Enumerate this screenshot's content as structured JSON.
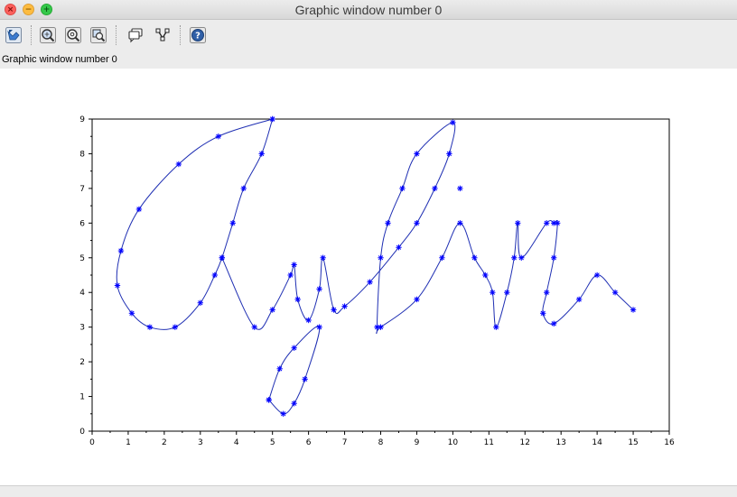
{
  "window": {
    "title": "Graphic window number 0",
    "subtitle": "Graphic window number 0"
  },
  "toolbar": {
    "buttons": [
      {
        "name": "rotate-button",
        "icon": "rotate-icon"
      },
      {
        "name": "zoom-button",
        "icon": "zoom-icon"
      },
      {
        "name": "zoom-origin-button",
        "icon": "zoom-origin-icon"
      },
      {
        "name": "zoom-out-button",
        "icon": "zoom-out-icon"
      },
      {
        "name": "datatip-button",
        "icon": "datatip-icon"
      },
      {
        "name": "edit-curve-button",
        "icon": "edit-curve-icon"
      },
      {
        "name": "help-button",
        "icon": "help-icon"
      }
    ]
  },
  "colors": {
    "curve": "#1f2fb3",
    "marker": "#0000ff"
  },
  "chart_data": {
    "type": "line",
    "title": "",
    "xlabel": "",
    "ylabel": "",
    "xlim": [
      0,
      16
    ],
    "ylim": [
      0,
      9
    ],
    "x_ticks": [
      "0",
      "1",
      "2",
      "3",
      "4",
      "5",
      "6",
      "7",
      "8",
      "9",
      "10",
      "11",
      "12",
      "13",
      "14",
      "15",
      "16"
    ],
    "y_ticks": [
      "0",
      "1",
      "2",
      "3",
      "4",
      "5",
      "6",
      "7",
      "8",
      "9"
    ],
    "grid": false,
    "marker": "*",
    "series": [
      {
        "points": [
          [
            5.0,
            9.0
          ],
          [
            3.5,
            8.5
          ],
          [
            2.4,
            7.7
          ],
          [
            1.3,
            6.4
          ],
          [
            0.8,
            5.2
          ],
          [
            0.7,
            4.2
          ],
          [
            1.1,
            3.4
          ],
          [
            1.6,
            3.0
          ],
          [
            2.3,
            3.0
          ],
          [
            3.0,
            3.7
          ],
          [
            3.4,
            4.5
          ],
          [
            3.6,
            5.0
          ],
          [
            3.9,
            6.0
          ],
          [
            4.2,
            7.0
          ],
          [
            4.7,
            8.0
          ],
          [
            5.0,
            9.0
          ]
        ]
      },
      {
        "points": [
          [
            3.6,
            5.0
          ],
          [
            4.5,
            3.0
          ],
          [
            5.0,
            3.5
          ],
          [
            5.5,
            4.5
          ],
          [
            5.6,
            4.8
          ],
          [
            5.7,
            3.8
          ],
          [
            6.0,
            3.2
          ],
          [
            6.3,
            4.1
          ],
          [
            6.4,
            5.0
          ],
          [
            6.7,
            3.5
          ],
          [
            7.0,
            3.6
          ],
          [
            7.7,
            4.3
          ],
          [
            8.5,
            5.3
          ],
          [
            9.0,
            6.0
          ],
          [
            9.5,
            7.0
          ],
          [
            9.9,
            8.0
          ],
          [
            10.0,
            8.9
          ],
          [
            9.0,
            8.0
          ],
          [
            8.6,
            7.0
          ],
          [
            8.2,
            6.0
          ],
          [
            8.0,
            5.0
          ],
          [
            7.9,
            3.0
          ],
          [
            8.0,
            3.0
          ],
          [
            9.0,
            3.8
          ],
          [
            9.7,
            5.0
          ],
          [
            10.2,
            6.0
          ],
          [
            10.6,
            5.0
          ],
          [
            10.9,
            4.5
          ],
          [
            11.1,
            4.0
          ],
          [
            11.2,
            3.0
          ],
          [
            11.5,
            4.0
          ],
          [
            11.7,
            5.0
          ],
          [
            11.8,
            6.0
          ],
          [
            11.9,
            5.0
          ],
          [
            12.6,
            6.0
          ],
          [
            12.8,
            6.0
          ],
          [
            12.9,
            6.0
          ],
          [
            12.8,
            5.0
          ],
          [
            12.6,
            4.0
          ],
          [
            12.5,
            3.4
          ],
          [
            12.8,
            3.1
          ],
          [
            13.5,
            3.8
          ],
          [
            14.0,
            4.5
          ],
          [
            14.5,
            4.0
          ],
          [
            15.0,
            3.5
          ]
        ]
      },
      {
        "points": [
          [
            4.9,
            0.9
          ],
          [
            5.3,
            0.5
          ],
          [
            5.6,
            0.8
          ],
          [
            5.9,
            1.5
          ],
          [
            6.3,
            3.0
          ],
          [
            5.6,
            2.4
          ],
          [
            5.2,
            1.8
          ],
          [
            4.9,
            0.9
          ]
        ]
      },
      {
        "points": [
          [
            10.2,
            7.0
          ]
        ]
      }
    ]
  }
}
